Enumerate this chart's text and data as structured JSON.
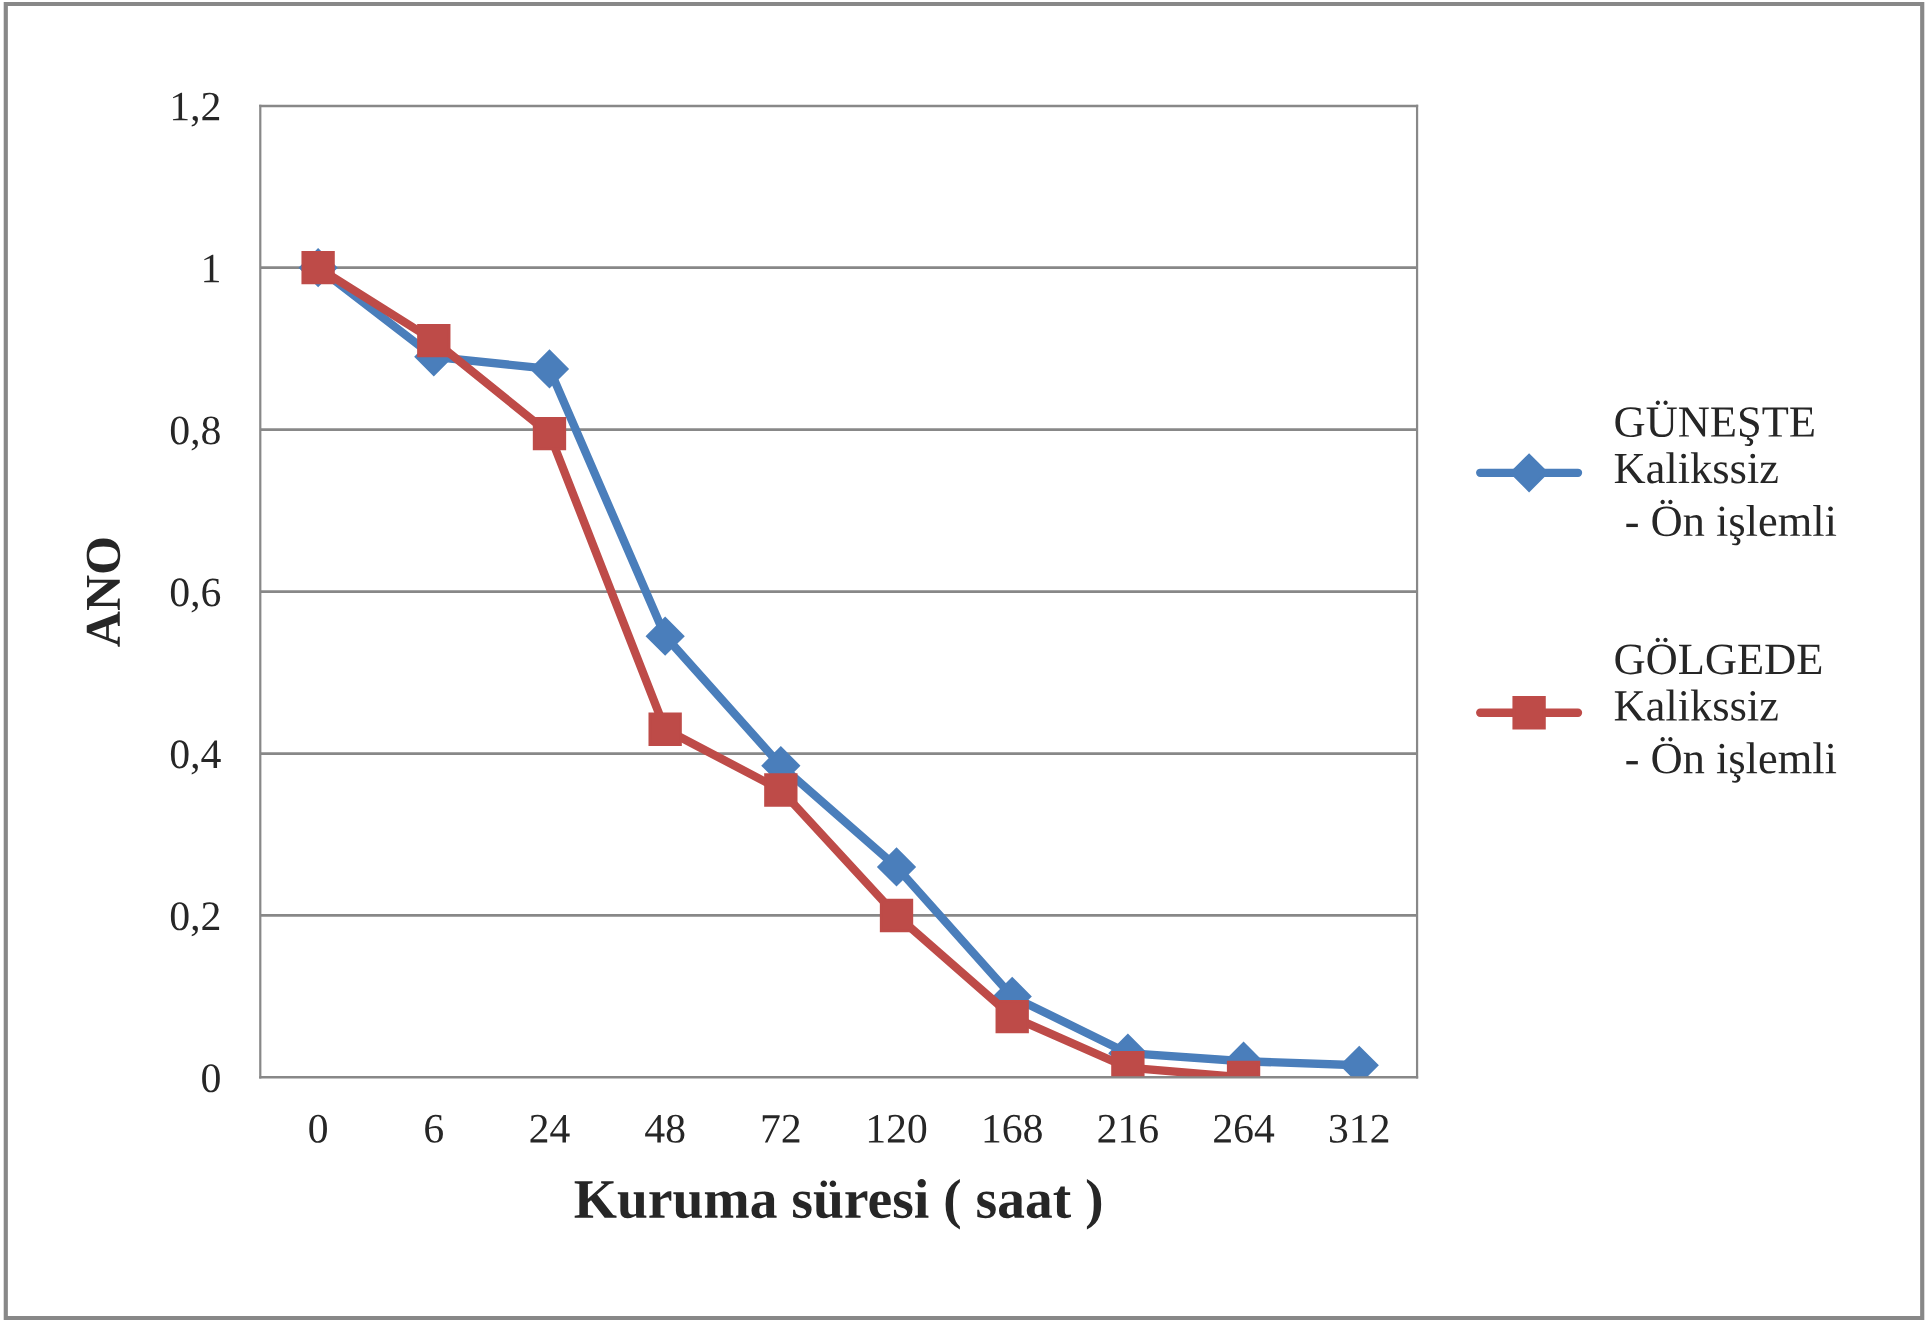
{
  "chart_data": {
    "type": "line",
    "xlabel": "Kuruma süresi ( saat )",
    "ylabel": "ANO",
    "categories": [
      "0",
      "6",
      "24",
      "48",
      "72",
      "120",
      "168",
      "216",
      "264",
      "312"
    ],
    "series": [
      {
        "name": "GÜNEŞTE\nKalikssiz\n - Ön işlemli",
        "color": "#4a7ebb",
        "marker": "diamond",
        "values": [
          1.0,
          0.89,
          0.875,
          0.545,
          0.385,
          0.26,
          0.1,
          0.03,
          0.02,
          0.015
        ]
      },
      {
        "name": "GÖLGEDE\nKalikssiz\n - Ön işlemli",
        "color": "#be4b48",
        "marker": "square",
        "values": [
          1.0,
          0.91,
          0.795,
          0.43,
          0.355,
          0.2,
          0.075,
          0.012,
          0.0,
          null
        ]
      }
    ],
    "ylim": [
      0,
      1.2
    ],
    "yticks": [
      {
        "value": 0,
        "label": "0"
      },
      {
        "value": 0.2,
        "label": "0,2"
      },
      {
        "value": 0.4,
        "label": "0,4"
      },
      {
        "value": 0.6,
        "label": "0,6"
      },
      {
        "value": 0.8,
        "label": "0,8"
      },
      {
        "value": 1,
        "label": "1"
      },
      {
        "value": 1.2,
        "label": "1,2"
      }
    ],
    "grid": "y",
    "legend": "right",
    "line_style": "solid"
  }
}
